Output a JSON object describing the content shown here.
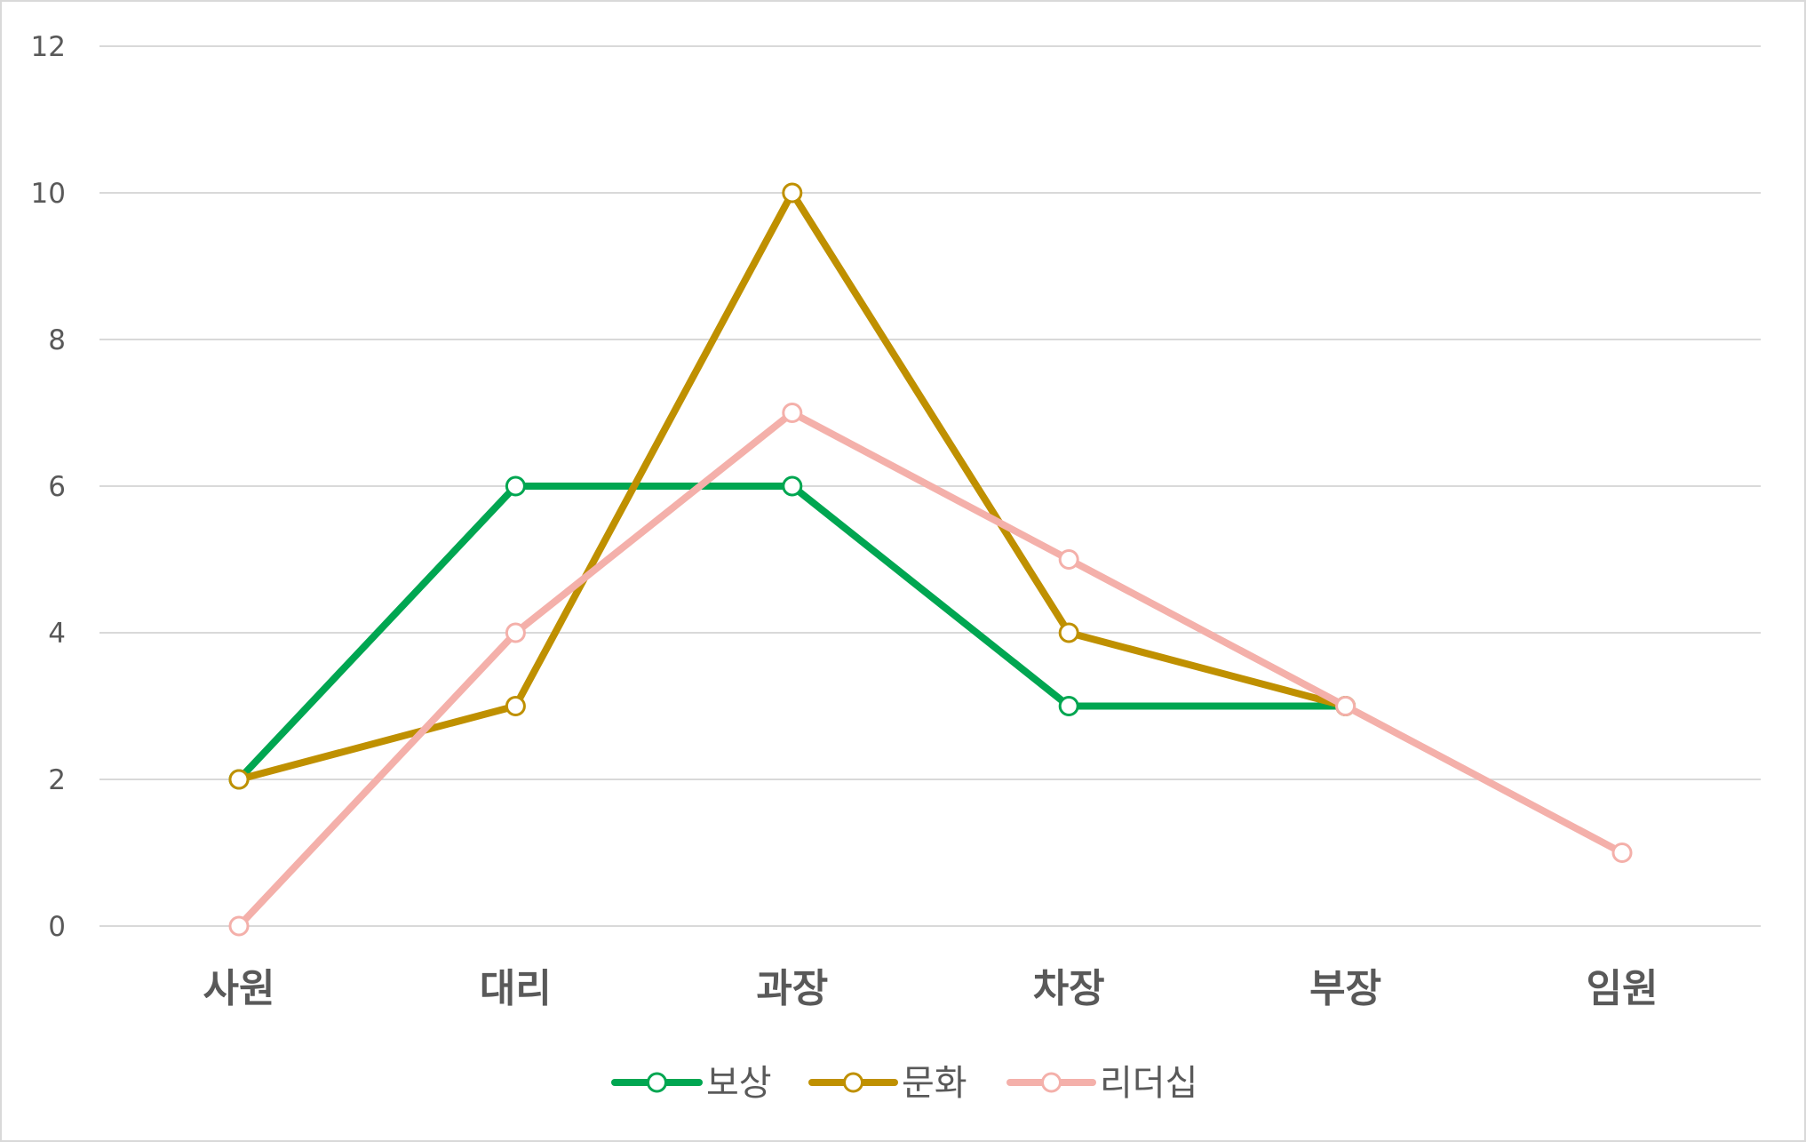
{
  "chart_data": {
    "type": "line",
    "title": "",
    "xlabel": "",
    "ylabel": "",
    "categories": [
      "사원",
      "대리",
      "과장",
      "차장",
      "부장",
      "임원"
    ],
    "ylim": [
      0,
      12
    ],
    "yticks": [
      0,
      2,
      4,
      6,
      8,
      10,
      12
    ],
    "grid": true,
    "legend_position": "bottom",
    "markers": "hollow-circle",
    "series": [
      {
        "name": "보상",
        "color": "#00A651",
        "values": [
          2,
          6,
          6,
          3,
          3,
          null
        ]
      },
      {
        "name": "문화",
        "color": "#BF9000",
        "values": [
          2,
          3,
          10,
          4,
          3,
          null
        ]
      },
      {
        "name": "리더십",
        "color": "#F4B0AA",
        "values": [
          0,
          4,
          7,
          5,
          3,
          1
        ]
      }
    ]
  }
}
